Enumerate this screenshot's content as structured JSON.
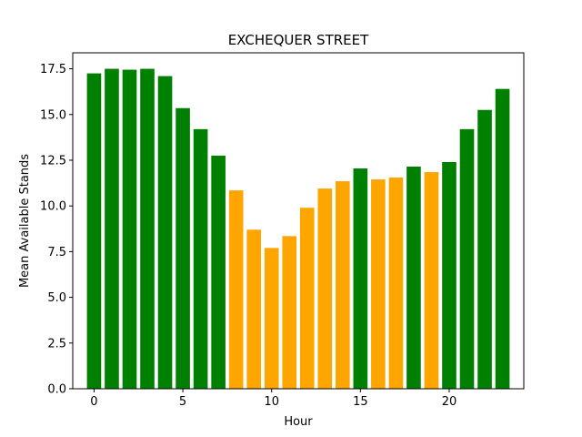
{
  "chart_data": {
    "type": "bar",
    "title": "EXCHEQUER STREET",
    "xlabel": "Hour",
    "ylabel": "Mean Available Stands",
    "x": [
      0,
      1,
      2,
      3,
      4,
      5,
      6,
      7,
      8,
      9,
      10,
      11,
      12,
      13,
      14,
      15,
      16,
      17,
      18,
      19,
      20,
      21,
      22,
      23
    ],
    "values": [
      17.25,
      17.5,
      17.45,
      17.5,
      17.1,
      15.35,
      14.2,
      12.75,
      10.85,
      8.7,
      7.7,
      8.35,
      9.9,
      10.95,
      11.35,
      12.05,
      11.45,
      11.55,
      12.15,
      11.85,
      12.4,
      14.2,
      15.25,
      16.4
    ],
    "colors": [
      "#008000",
      "#008000",
      "#008000",
      "#008000",
      "#008000",
      "#008000",
      "#008000",
      "#008000",
      "#ffa500",
      "#ffa500",
      "#ffa500",
      "#ffa500",
      "#ffa500",
      "#ffa500",
      "#ffa500",
      "#008000",
      "#ffa500",
      "#ffa500",
      "#008000",
      "#ffa500",
      "#008000",
      "#008000",
      "#008000",
      "#008000"
    ],
    "xlim": [
      -1.2,
      24.2
    ],
    "ylim": [
      0,
      18.375
    ],
    "xticks": [
      0,
      5,
      10,
      15,
      20
    ],
    "xtick_labels": [
      "0",
      "5",
      "10",
      "15",
      "20"
    ],
    "yticks": [
      0,
      2.5,
      5,
      7.5,
      10,
      12.5,
      15,
      17.5
    ],
    "ytick_labels": [
      "0.0",
      "2.5",
      "5.0",
      "7.5",
      "10.0",
      "12.5",
      "15.0",
      "17.5"
    ],
    "grid": false,
    "legend": "none"
  }
}
